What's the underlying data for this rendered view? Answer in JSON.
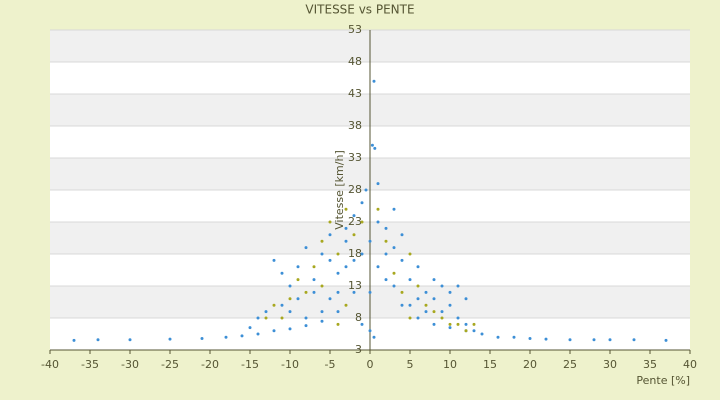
{
  "chart_data": {
    "type": "scatter",
    "title": "VITESSE vs PENTE",
    "x_label": "Pente [%]",
    "y_label": "Vitesse [km/h]",
    "xlim": [
      -40,
      40
    ],
    "xticks": [
      -40,
      -35,
      -30,
      -25,
      -20,
      -15,
      -10,
      -5,
      0,
      5,
      10,
      15,
      20,
      25,
      30,
      35,
      40
    ],
    "ylim": [
      3,
      53
    ],
    "yticks": [
      3,
      8,
      13,
      18,
      23,
      28,
      33,
      38,
      43,
      48,
      53
    ],
    "grid": true,
    "series": [
      {
        "color": "#3d8fd6",
        "x": [
          -37,
          -34,
          -30,
          -25,
          -21,
          -18,
          -16,
          -14,
          -12,
          -10,
          -8,
          -6,
          -4,
          -2,
          18,
          20,
          22,
          25,
          28,
          30,
          33,
          37,
          16,
          14,
          12,
          10,
          8,
          6,
          4,
          2,
          -12,
          -11,
          -10,
          -9,
          -8,
          -7,
          -6,
          -5,
          -4,
          -3,
          -2,
          -1,
          0,
          1,
          2,
          3,
          4,
          5,
          6,
          7,
          8,
          9,
          10,
          11,
          12,
          13,
          -13,
          -11,
          -9,
          -7,
          -5,
          -3,
          -1,
          1,
          3,
          5,
          7,
          -6,
          -4,
          -2,
          0,
          2,
          4,
          6,
          8,
          10,
          0.5,
          0.3,
          0.6,
          -0.5,
          1,
          -1,
          0.5,
          0,
          -8,
          -10,
          -14,
          12,
          11,
          9,
          -5,
          -3,
          3,
          -15
        ],
        "y": [
          4.5,
          4.6,
          4.6,
          4.7,
          4.8,
          5,
          5.2,
          5.5,
          6,
          6.3,
          6.8,
          7.5,
          9,
          12,
          5,
          4.8,
          4.7,
          4.6,
          4.6,
          4.6,
          4.6,
          4.5,
          5,
          5.5,
          6,
          6.5,
          7,
          8,
          10,
          14,
          17,
          15,
          13,
          16,
          19,
          12,
          18,
          21,
          15,
          22,
          24,
          26,
          20,
          23,
          22,
          19,
          17,
          14,
          16,
          12,
          11,
          9,
          10,
          8,
          7,
          6,
          9,
          10,
          11,
          14,
          11,
          16,
          18,
          16,
          13,
          10,
          9,
          9,
          12,
          17,
          12,
          18,
          21,
          11,
          14,
          12,
          45,
          35,
          34.5,
          28,
          29,
          7,
          5,
          6,
          8,
          9,
          8,
          11,
          13,
          13,
          17,
          20,
          25,
          6.5
        ]
      },
      {
        "color": "#a8a820",
        "x": [
          -12,
          -11,
          -9,
          -8,
          -7,
          -6,
          -5,
          -4,
          -3,
          -2,
          -1,
          1,
          2,
          3,
          4,
          5,
          6,
          7,
          8,
          10,
          12,
          -10,
          -6,
          -4,
          -3,
          5,
          9,
          11,
          -13,
          13
        ],
        "y": [
          10,
          8,
          14,
          12,
          16,
          20,
          23,
          18,
          25,
          21,
          23,
          25,
          20,
          15,
          12,
          18,
          13,
          10,
          9,
          7,
          6,
          11,
          13,
          7,
          10,
          8,
          8,
          7,
          8,
          7
        ]
      }
    ]
  }
}
